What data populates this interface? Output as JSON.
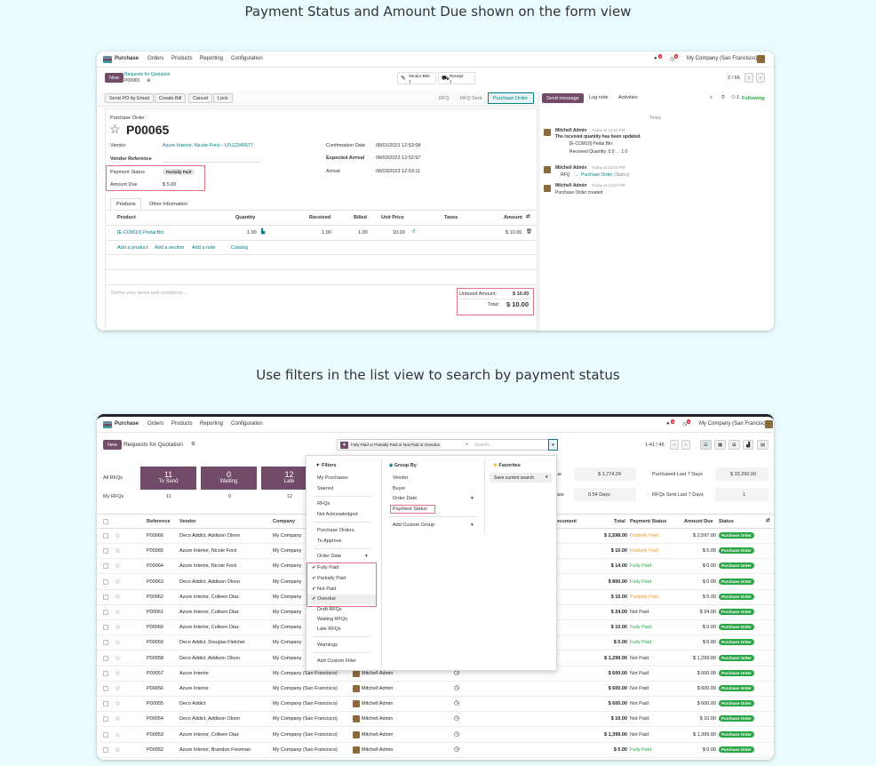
{
  "captions": {
    "top": "Payment Status and Amount Due shown on the form view",
    "bottom": "Use filters in the list view to search by payment status"
  },
  "nav": {
    "app": "Purchase",
    "menus": [
      "Orders",
      "Products",
      "Reporting",
      "Configuration"
    ],
    "company": "My Company (San Francisco)",
    "badge_msg": "5",
    "badge_act": "6"
  },
  "form": {
    "new": "New",
    "breadcrumb": "Requests for Quotation",
    "record": "P00065",
    "smart": {
      "bills_label": "Vendor Bills",
      "bills_count": "1",
      "receipt_label": "Receipt",
      "receipt_count": "1"
    },
    "pager": "2 / 66",
    "actions": [
      "Send PO by Email",
      "Create Bill",
      "Cancel",
      "Lock"
    ],
    "stages": [
      "RFQ",
      "RFQ Sent",
      "Purchase Order"
    ],
    "chatter_btns": [
      "Send message",
      "Log note",
      "Activities"
    ],
    "following": "Following",
    "followers": "1",
    "doc_type": "Purchase Order",
    "name": "P00065",
    "vendor_lbl": "Vendor",
    "vendor": "Azure Interior, Nicole Ford – US12345677",
    "vendor_ref_lbl": "Vendor Reference",
    "pay_status_lbl": "Payment Status",
    "pay_status": "Partially Paid",
    "amount_due_lbl": "Amount Due",
    "amount_due": "$ 5.00",
    "confirm_lbl": "Confirmation Date",
    "confirm": "08/01/2023 12:53:08",
    "expected_lbl": "Expected Arrival",
    "expected": "08/03/2023 12:52:57",
    "arrival_lbl": "Arrival",
    "arrival": "08/03/2023 12:53:11",
    "tabs": [
      "Products",
      "Other Information"
    ],
    "cols": [
      "Product",
      "Quantity",
      "Received",
      "Billed",
      "Unit Price",
      "Taxes",
      "Amount"
    ],
    "line": {
      "product": "[E-COM10] Pedal Bin",
      "qty": "1.00",
      "received": "1.00",
      "billed": "1.00",
      "price": "10.00",
      "amount": "$ 10.00"
    },
    "add": [
      "Add a product",
      "Add a section",
      "Add a note",
      "Catalog"
    ],
    "terms": "Define your terms and conditions ...",
    "untaxed_lbl": "Untaxed Amount:",
    "untaxed": "$ 10.00",
    "total_lbl": "Total:",
    "total": "$ 10.00",
    "chatter": {
      "today": "Today",
      "m1_author": "Mitchell Admin",
      "m1_time": "Today at 12:53 PM",
      "m1_title": "The received quantity has been updated.",
      "m1_l1": "[E-COM10] Pedal Bin:",
      "m1_l2": "Received Quantity: 0.0 → 1.0",
      "m2_author": "Mitchell Admin",
      "m2_time": "Today at 12:53 PM",
      "m2_from": "RFQ",
      "m2_to": "Purchase Order",
      "m2_field": "(Status)",
      "m3_author": "Mitchell Admin",
      "m3_time": "Today at 12:53 PM",
      "m3_text": "Purchase Order created"
    }
  },
  "list": {
    "new": "New",
    "title": "Requests for Quotation",
    "facet": "Fully Paid or Partially Paid or Not Paid or Overdue",
    "search_ph": "Search...",
    "pager": "1-41 / 45",
    "kpi_left": [
      "All RFQs",
      "My RFQs"
    ],
    "kpis": [
      {
        "n": "11",
        "l": "To Send",
        "m": "11"
      },
      {
        "n": "0",
        "l": "Waiting",
        "m": "0"
      },
      {
        "n": "12",
        "l": "Late",
        "m": "12"
      }
    ],
    "right_kpi": {
      "a_frag": "ue",
      "a_val": "$ 1,774.24",
      "b_frag": "ase",
      "b_val": "0.54 Days",
      "c_lbl": "Purchased Last 7 Days",
      "c_val": "$ 33,290.00",
      "d_lbl": "RFQs Sent Last 7 Days",
      "d_val": "1"
    },
    "cols": {
      "ref": "Reference",
      "vendor": "Vendor",
      "company": "Company",
      "doc_frag": "ocument",
      "total": "Total",
      "pay": "Payment Status",
      "due": "Amount Due",
      "status": "Status"
    },
    "filters": {
      "h": "Filters",
      "items": [
        "My Purchases",
        "Starred",
        "RFQs",
        "Not Acknowledged",
        "Purchase Orders",
        "To Approve",
        "Order Date",
        "Fully Paid",
        "Partially Paid",
        "Not Paid",
        "Overdue",
        "Draft RFQs",
        "Waiting RFQs",
        "Late RFQs",
        "Warnings",
        "Add Custom Filter"
      ]
    },
    "groupby": {
      "h": "Group By",
      "items": [
        "Vendor",
        "Buyer",
        "Order Date",
        "Payment Status",
        "Add Custom Group"
      ]
    },
    "favorites": {
      "h": "Favorites",
      "save": "Save current search"
    },
    "rows": [
      {
        "ref": "P00066",
        "vendor": "Deco Addict, Addison Olson",
        "company": "My Company",
        "total": "$ 2,598.00",
        "pay": "Partially Paid",
        "due": "$ 2,597.00",
        "status": "Purchase Order"
      },
      {
        "ref": "P00065",
        "vendor": "Azure Interior, Nicole Ford",
        "company": "My Company",
        "total": "$ 10.00",
        "pay": "Partially Paid",
        "due": "$ 5.00",
        "status": "Purchase Order"
      },
      {
        "ref": "P00064",
        "vendor": "Azure Interior, Nicole Ford",
        "company": "My Company",
        "total": "$ 14.00",
        "pay": "Fully Paid",
        "due": "$ 0.00",
        "status": "Purchase Order"
      },
      {
        "ref": "P00063",
        "vendor": "Deco Addict, Addison Olson",
        "company": "My Company",
        "total": "$ 800.00",
        "pay": "Fully Paid",
        "due": "$ 0.00",
        "status": "Purchase Order"
      },
      {
        "ref": "P00062",
        "vendor": "Azure Interior, Colleen Diaz",
        "company": "My Company",
        "total": "$ 10.00",
        "pay": "Partially Paid",
        "due": "$ 5.00",
        "status": "Purchase Order"
      },
      {
        "ref": "P00061",
        "vendor": "Azure Interior, Colleen Diaz",
        "company": "My Company",
        "total": "$ 24.00",
        "pay": "Not Paid",
        "due": "$ 24.00",
        "status": "Purchase Order"
      },
      {
        "ref": "P00060",
        "vendor": "Azure Interior, Colleen Diaz",
        "company": "My Company",
        "total": "$ 10.00",
        "pay": "Fully Paid",
        "due": "$ 0.00",
        "status": "Purchase Order"
      },
      {
        "ref": "P00059",
        "vendor": "Deco Addict, Douglas Fletcher",
        "company": "My Company",
        "total": "$ 0.00",
        "pay": "Fully Paid",
        "due": "$ 0.00",
        "status": "Purchase Order"
      },
      {
        "ref": "P00058",
        "vendor": "Deco Addict, Addison Olson",
        "company": "My Company",
        "total": "$ 1,299.00",
        "pay": "Not Paid",
        "due": "$ 1,299.00",
        "status": "Purchase Order"
      },
      {
        "ref": "P00057",
        "vendor": "Azure Interior",
        "company": "My Company (San Francisco)",
        "buyer": "Mitchell Admin",
        "total": "$ 600.00",
        "pay": "Not Paid",
        "due": "$ 600.00",
        "status": "Purchase Order"
      },
      {
        "ref": "P00056",
        "vendor": "Azure Interior",
        "company": "My Company (San Francisco)",
        "buyer": "Mitchell Admin",
        "total": "$ 600.00",
        "pay": "Not Paid",
        "due": "$ 600.00",
        "status": "Purchase Order"
      },
      {
        "ref": "P00055",
        "vendor": "Deco Addict",
        "company": "My Company (San Francisco)",
        "buyer": "Mitchell Admin",
        "total": "$ 600.00",
        "pay": "Not Paid",
        "due": "$ 600.00",
        "status": "Purchase Order"
      },
      {
        "ref": "P00054",
        "vendor": "Deco Addict, Addison Olson",
        "company": "My Company (San Francisco)",
        "buyer": "Mitchell Admin",
        "total": "$ 10.00",
        "pay": "Not Paid",
        "due": "$ 10.00",
        "status": "Purchase Order"
      },
      {
        "ref": "P00053",
        "vendor": "Azure Interior, Colleen Diaz",
        "company": "My Company (San Francisco)",
        "buyer": "Mitchell Admin",
        "total": "$ 1,399.00",
        "pay": "Not Paid",
        "due": "$ 1,399.00",
        "status": "Purchase Order"
      },
      {
        "ref": "P00052",
        "vendor": "Azure Interior, Brandon Freeman",
        "company": "My Company (San Francisco)",
        "buyer": "Mitchell Admin",
        "total": "$ 0.00",
        "pay": "Fully Paid",
        "due": "$ 0.00",
        "status": "Purchase Order"
      }
    ]
  },
  "colors": {
    "brand": "#714b67",
    "teal": "#017e84",
    "green": "#28a745",
    "orange": "#e79b35",
    "highlight": "#e5737f"
  }
}
